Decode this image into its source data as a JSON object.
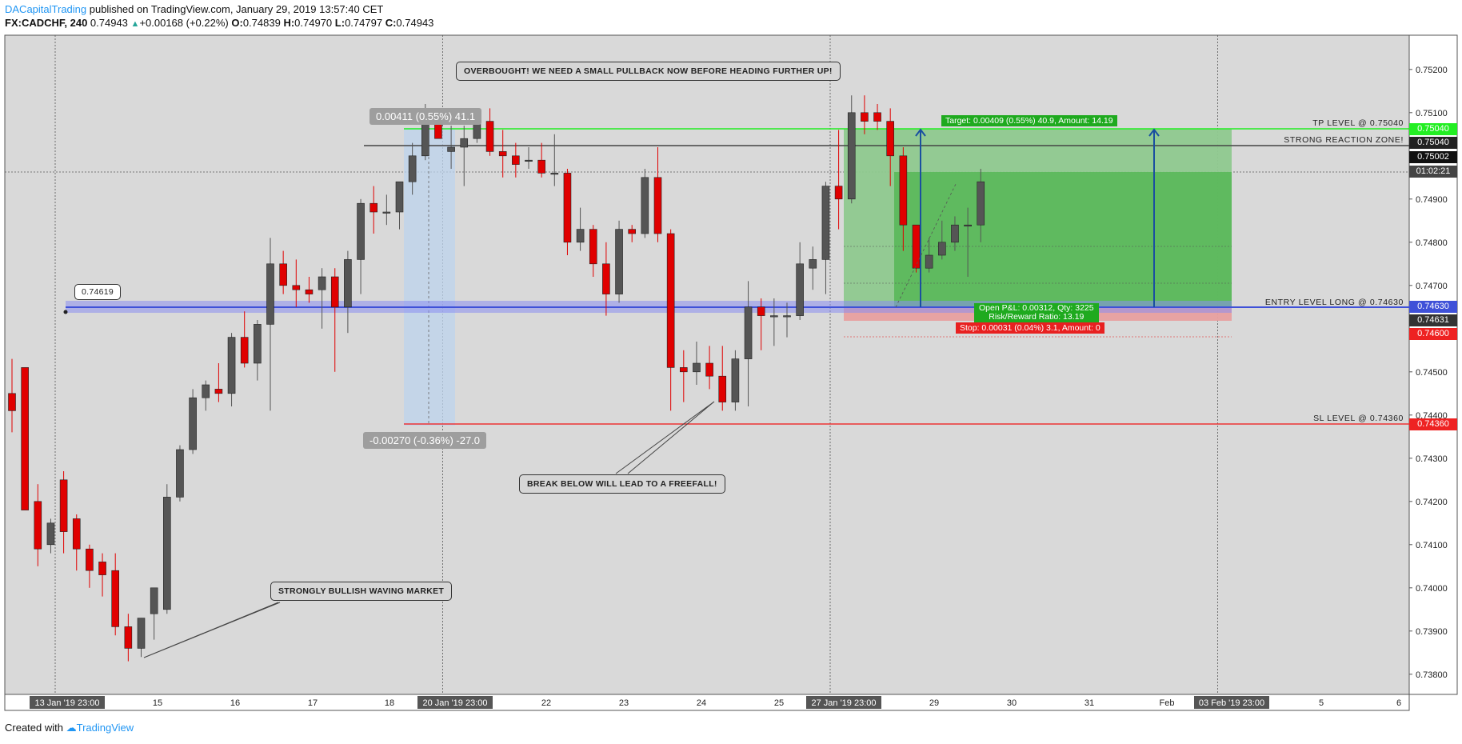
{
  "header": {
    "author": "DACapitalTrading",
    "published": " published on TradingView.com, January 29, 2019 13:57:40 CET",
    "symbol": "FX:CADCHF, 240",
    "price": "0.74943",
    "change": "+0.00168 (+0.22%)",
    "open_label": "O:",
    "open": "0.74839",
    "high_label": "H:",
    "high": "0.74970",
    "low_label": "L:",
    "low": "0.74797",
    "close_label": "C:",
    "close": "0.74943"
  },
  "footer": {
    "created": "Created with",
    "brand": "TradingView"
  },
  "annotations": {
    "overbought": "OVERBOUGHT! WE NEED A SMALL PULLBACK NOW BEFORE HEADING FURTHER UP!",
    "bullish": "STRONGLY BULLISH WAVING MARKET",
    "break": "BREAK BELOW WILL LEAD TO A FREEFALL!",
    "marker": "0.74619"
  },
  "measure": {
    "up": "0.00411 (0.55%) 41.1",
    "down": "-0.00270 (-0.36%) -27.0"
  },
  "position": {
    "target": "Target: 0.00409 (0.55%) 40.9, Amount: 14.19",
    "pnl": "Open P&L: 0.00312, Qty: 3225",
    "rr": "Risk/Reward Ratio: 13.19",
    "stop": "Stop: 0.00031 (0.04%) 3.1, Amount: 0"
  },
  "levels": {
    "tp": "TP LEVEL @ 0.75040",
    "reaction": "STRONG REACTION ZONE!",
    "entry": "ENTRY LEVEL LONG @ 0.74630",
    "sl": "SL LEVEL @ 0.74360"
  },
  "price_labels": {
    "tp": "0.75040",
    "reaction": "0.75040",
    "last": "0.75002",
    "countdown": "01:02:21",
    "entry": "0.74630",
    "entry2": "0.74631",
    "stop": "0.74600",
    "sl": "0.74360"
  },
  "colors": {
    "up": "#555555",
    "down": "#e00000",
    "tp": "#00e600",
    "entry": "#3f51b5",
    "sl": "#ff3333"
  },
  "chart_data": {
    "type": "candlestick",
    "y_ticks": [
      "0.75200",
      "0.75100",
      "0.74900",
      "0.74800",
      "0.74700",
      "0.74500",
      "0.74400",
      "0.74300",
      "0.74200",
      "0.74100",
      "0.74000",
      "0.73900",
      "0.73800"
    ],
    "ylim": [
      0.7376,
      0.7524
    ],
    "x_ticks": [
      {
        "label": "13 Jan '19   23:00",
        "i": 4,
        "hl": true
      },
      {
        "label": "15",
        "i": 12
      },
      {
        "label": "16",
        "i": 18
      },
      {
        "label": "17",
        "i": 24
      },
      {
        "label": "18",
        "i": 30
      },
      {
        "label": "20 Jan '19   23:00",
        "i": 34,
        "hl": true
      },
      {
        "label": "22",
        "i": 42
      },
      {
        "label": "23",
        "i": 48
      },
      {
        "label": "24",
        "i": 54
      },
      {
        "label": "25",
        "i": 60
      },
      {
        "label": "27 Jan '19   23:00",
        "i": 64,
        "hl": true
      },
      {
        "label": "29",
        "i": 72
      },
      {
        "label": "30",
        "i": 78
      },
      {
        "label": "31",
        "i": 84
      },
      {
        "label": "Feb",
        "i": 90
      },
      {
        "label": "03 Feb '19   23:00",
        "i": 94,
        "hl": true
      },
      {
        "label": "5",
        "i": 102
      },
      {
        "label": "6",
        "i": 108
      }
    ],
    "candles": [
      [
        0.7445,
        0.7453,
        0.7441,
        0.7436
      ],
      [
        0.7451,
        0.7451,
        0.7418,
        0.742
      ],
      [
        0.742,
        0.7424,
        0.7409,
        0.7405
      ],
      [
        0.741,
        0.7416,
        0.7415,
        0.7408
      ],
      [
        0.7425,
        0.7427,
        0.7413,
        0.7408
      ],
      [
        0.7416,
        0.7417,
        0.7409,
        0.7404
      ],
      [
        0.7409,
        0.741,
        0.7404,
        0.74
      ],
      [
        0.7406,
        0.7408,
        0.7403,
        0.7398
      ],
      [
        0.7404,
        0.7408,
        0.7391,
        0.7389
      ],
      [
        0.7391,
        0.7394,
        0.7386,
        0.7383
      ],
      [
        0.7386,
        0.7393,
        0.7393,
        0.7384
      ],
      [
        0.7394,
        0.74,
        0.74,
        0.7388
      ],
      [
        0.7395,
        0.7424,
        0.7421,
        0.7394
      ],
      [
        0.7421,
        0.7433,
        0.7432,
        0.742
      ],
      [
        0.7432,
        0.7446,
        0.7444,
        0.7431
      ],
      [
        0.7444,
        0.7448,
        0.7447,
        0.7441
      ],
      [
        0.7446,
        0.7452,
        0.7445,
        0.7443
      ],
      [
        0.7445,
        0.7459,
        0.7458,
        0.7442
      ],
      [
        0.7458,
        0.7464,
        0.7452,
        0.7451
      ],
      [
        0.7452,
        0.7462,
        0.7461,
        0.7448
      ],
      [
        0.7461,
        0.7481,
        0.7475,
        0.7441
      ],
      [
        0.7475,
        0.7478,
        0.747,
        0.7468
      ],
      [
        0.747,
        0.7476,
        0.7469,
        0.7465
      ],
      [
        0.7469,
        0.7472,
        0.7468,
        0.7466
      ],
      [
        0.7469,
        0.7474,
        0.7472,
        0.746
      ],
      [
        0.7472,
        0.7474,
        0.7465,
        0.745
      ],
      [
        0.7465,
        0.7478,
        0.7476,
        0.7459
      ],
      [
        0.7476,
        0.749,
        0.7489,
        0.7468
      ],
      [
        0.7489,
        0.7493,
        0.7487,
        0.7482
      ],
      [
        0.7487,
        0.7491,
        0.7487,
        0.7484
      ],
      [
        0.7487,
        0.7494,
        0.7494,
        0.7483
      ],
      [
        0.7494,
        0.7503,
        0.75,
        0.7491
      ],
      [
        0.75,
        0.7512,
        0.7509,
        0.7499
      ],
      [
        0.7509,
        0.751,
        0.7504,
        0.7504
      ],
      [
        0.7501,
        0.7507,
        0.7502,
        0.7497
      ],
      [
        0.7502,
        0.7507,
        0.7504,
        0.7493
      ],
      [
        0.7504,
        0.751,
        0.7508,
        0.7503
      ],
      [
        0.7508,
        0.7511,
        0.7501,
        0.75
      ],
      [
        0.7501,
        0.7506,
        0.75,
        0.7495
      ],
      [
        0.75,
        0.7503,
        0.7498,
        0.7495
      ],
      [
        0.7499,
        0.7502,
        0.7499,
        0.7497
      ],
      [
        0.7499,
        0.7503,
        0.7496,
        0.7495
      ],
      [
        0.7496,
        0.7505,
        0.7496,
        0.7493
      ],
      [
        0.7496,
        0.7497,
        0.748,
        0.7477
      ],
      [
        0.748,
        0.7488,
        0.7483,
        0.7478
      ],
      [
        0.7483,
        0.7484,
        0.7475,
        0.7472
      ],
      [
        0.7475,
        0.748,
        0.7468,
        0.7463
      ],
      [
        0.7468,
        0.7485,
        0.7483,
        0.7466
      ],
      [
        0.7483,
        0.7484,
        0.7482,
        0.748
      ],
      [
        0.7482,
        0.7497,
        0.7495,
        0.7481
      ],
      [
        0.7495,
        0.7502,
        0.7482,
        0.748
      ],
      [
        0.7482,
        0.7483,
        0.7451,
        0.7441
      ],
      [
        0.7451,
        0.7455,
        0.745,
        0.7443
      ],
      [
        0.745,
        0.7457,
        0.7452,
        0.7447
      ],
      [
        0.7452,
        0.7456,
        0.7449,
        0.7446
      ],
      [
        0.7449,
        0.7456,
        0.7443,
        0.7441
      ],
      [
        0.7443,
        0.7455,
        0.7453,
        0.7441
      ],
      [
        0.7453,
        0.7471,
        0.7465,
        0.7442
      ],
      [
        0.7465,
        0.7467,
        0.7463,
        0.7455
      ],
      [
        0.7463,
        0.7467,
        0.7463,
        0.7456
      ],
      [
        0.7463,
        0.7466,
        0.7463,
        0.7458
      ],
      [
        0.7463,
        0.748,
        0.7475,
        0.7462
      ],
      [
        0.7474,
        0.7479,
        0.7476,
        0.7469
      ],
      [
        0.7476,
        0.7494,
        0.7493,
        0.7468
      ],
      [
        0.7493,
        0.7506,
        0.749,
        0.7483
      ],
      [
        0.749,
        0.7514,
        0.751,
        0.7489
      ],
      [
        0.751,
        0.7514,
        0.7508,
        0.7505
      ],
      [
        0.751,
        0.7512,
        0.7508,
        0.7506
      ],
      [
        0.7508,
        0.7511,
        0.75,
        0.7493
      ],
      [
        0.75,
        0.7502,
        0.7484,
        0.7478
      ],
      [
        0.7484,
        0.7484,
        0.7474,
        0.7473
      ],
      [
        0.7474,
        0.7481,
        0.7477,
        0.7473
      ],
      [
        0.7477,
        0.7485,
        0.748,
        0.7476
      ],
      [
        0.748,
        0.7486,
        0.7484,
        0.7478
      ],
      [
        0.7484,
        0.7488,
        0.7484,
        0.7472
      ],
      [
        0.7484,
        0.7497,
        0.7494,
        0.748
      ]
    ]
  }
}
